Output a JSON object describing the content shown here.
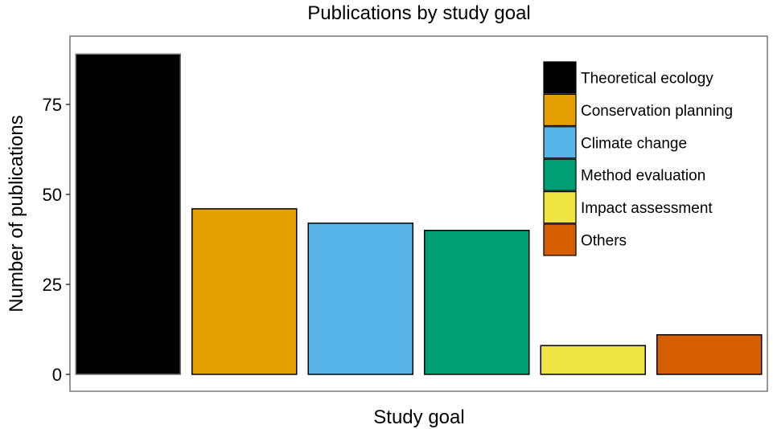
{
  "chart_data": {
    "type": "bar",
    "title": "Publications by study goal",
    "xlabel": "Study goal",
    "ylabel": "Number of publications",
    "categories": [
      "Theoretical ecology",
      "Conservation planning",
      "Climate change",
      "Method evaluation",
      "Impact assessment",
      "Others"
    ],
    "values": [
      89,
      46,
      42,
      40,
      8,
      11
    ],
    "colors": [
      "#000000",
      "#E69F00",
      "#56B4E9",
      "#009E73",
      "#F0E442",
      "#D55E00"
    ],
    "ylim": [
      0,
      90
    ],
    "yticks": [
      0,
      25,
      50,
      75
    ],
    "grid": false,
    "legend_position": "top-right",
    "x_tick_labels_shown": false
  }
}
